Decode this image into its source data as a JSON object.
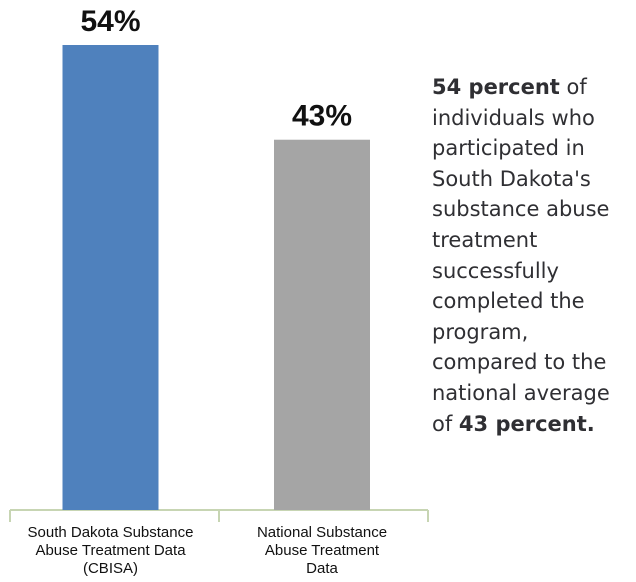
{
  "chart_data": {
    "type": "bar",
    "title": "",
    "xlabel": "",
    "ylabel": "",
    "ylim": [
      0,
      54
    ],
    "grid": false,
    "categories": [
      "South Dakota Substance Abuse Treatment Data (CBISA)",
      "National Substance Abuse Treatment Data"
    ],
    "category_lines": [
      [
        "South Dakota Substance",
        "Abuse Treatment Data",
        "(CBISA)"
      ],
      [
        "National Substance",
        "Abuse Treatment",
        "Data"
      ]
    ],
    "values": [
      54,
      43
    ],
    "data_labels": [
      "54%",
      "43%"
    ],
    "colors": [
      "#4f81bd",
      "#a5a5a5"
    ]
  },
  "description": {
    "lines": [
      [
        {
          "text": "54 percent",
          "bold": true
        },
        {
          "text": " of",
          "bold": false
        }
      ],
      [
        {
          "text": "individuals who",
          "bold": false
        }
      ],
      [
        {
          "text": "participated in",
          "bold": false
        }
      ],
      [
        {
          "text": "South Dakota's",
          "bold": false
        }
      ],
      [
        {
          "text": "substance abuse",
          "bold": false
        }
      ],
      [
        {
          "text": "treatment",
          "bold": false
        }
      ],
      [
        {
          "text": "successfully",
          "bold": false
        }
      ],
      [
        {
          "text": "completed the",
          "bold": false
        }
      ],
      [
        {
          "text": "program,",
          "bold": false
        }
      ],
      [
        {
          "text": "compared to the",
          "bold": false
        }
      ],
      [
        {
          "text": "national average",
          "bold": false
        }
      ],
      [
        {
          "text": "of ",
          "bold": false
        },
        {
          "text": "43 percent.",
          "bold": true
        }
      ]
    ]
  }
}
